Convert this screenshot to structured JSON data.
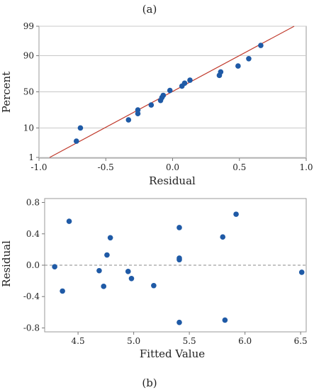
{
  "chart_data": [
    {
      "type": "scatter",
      "subtype": "normal-probability-plot",
      "panel_label": "(a)",
      "xlabel": "Residual",
      "ylabel": "Percent",
      "xlim": [
        -1.0,
        1.0
      ],
      "ylim_percent": [
        1,
        99
      ],
      "y_scale": "normal-probability",
      "x_ticks": [
        "-1.0",
        "-0.5",
        "0.0",
        "0.5",
        "1.0"
      ],
      "y_ticks": [
        1,
        10,
        50,
        90,
        99
      ],
      "grid": "horizontal at y ticks",
      "fit_line": {
        "from": [
          -0.92,
          1
        ],
        "to": [
          0.91,
          99
        ]
      },
      "points": [
        {
          "x": -0.72,
          "y": 4
        },
        {
          "x": -0.69,
          "y": 10
        },
        {
          "x": -0.33,
          "y": 16
        },
        {
          "x": -0.26,
          "y": 22
        },
        {
          "x": -0.26,
          "y": 26
        },
        {
          "x": -0.16,
          "y": 32
        },
        {
          "x": -0.09,
          "y": 38
        },
        {
          "x": -0.08,
          "y": 42
        },
        {
          "x": -0.07,
          "y": 45
        },
        {
          "x": -0.02,
          "y": 52
        },
        {
          "x": 0.07,
          "y": 58
        },
        {
          "x": 0.09,
          "y": 62
        },
        {
          "x": 0.13,
          "y": 66
        },
        {
          "x": 0.35,
          "y": 72
        },
        {
          "x": 0.36,
          "y": 76
        },
        {
          "x": 0.49,
          "y": 82
        },
        {
          "x": 0.57,
          "y": 88
        },
        {
          "x": 0.66,
          "y": 95
        }
      ],
      "colors": {
        "points": "#1f5aa6",
        "line": "#c0392b"
      }
    },
    {
      "type": "scatter",
      "panel_label": "(b)",
      "xlabel": "Fitted Value",
      "ylabel": "Residual",
      "xlim": [
        4.2,
        6.55
      ],
      "ylim": [
        -0.85,
        0.85
      ],
      "x_ticks": [
        "4.5",
        "5.0",
        "5.5",
        "6.0",
        "6.5"
      ],
      "y_ticks": [
        "0.8",
        "0.4",
        "0.0",
        "-0.4",
        "-0.8"
      ],
      "reference_line": {
        "y": 0,
        "style": "dashed"
      },
      "points": [
        {
          "x": 4.29,
          "y": -0.02
        },
        {
          "x": 4.36,
          "y": -0.33
        },
        {
          "x": 4.42,
          "y": 0.56
        },
        {
          "x": 4.69,
          "y": -0.07
        },
        {
          "x": 4.73,
          "y": -0.27
        },
        {
          "x": 4.76,
          "y": 0.13
        },
        {
          "x": 4.79,
          "y": 0.35
        },
        {
          "x": 4.95,
          "y": -0.08
        },
        {
          "x": 4.98,
          "y": -0.17
        },
        {
          "x": 5.18,
          "y": -0.26
        },
        {
          "x": 5.41,
          "y": 0.48
        },
        {
          "x": 5.41,
          "y": 0.09
        },
        {
          "x": 5.41,
          "y": 0.07
        },
        {
          "x": 5.41,
          "y": -0.73
        },
        {
          "x": 5.8,
          "y": 0.36
        },
        {
          "x": 5.82,
          "y": -0.7
        },
        {
          "x": 5.92,
          "y": 0.65
        },
        {
          "x": 6.51,
          "y": -0.09
        }
      ],
      "colors": {
        "points": "#1f5aa6",
        "reference": "#888888"
      }
    }
  ]
}
